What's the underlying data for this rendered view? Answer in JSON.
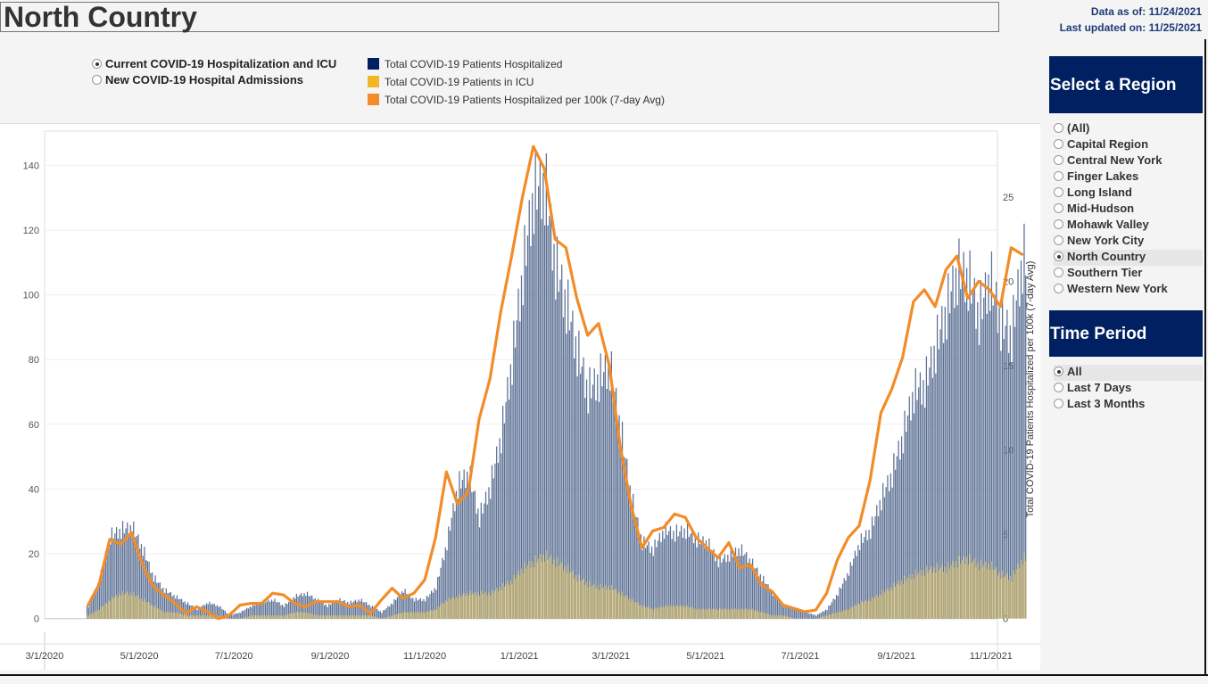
{
  "page": {
    "title": "North Country"
  },
  "asof": {
    "data_as_of": "Data as of: 11/24/2021",
    "last_updated": "Last updated on: 11/25/2021"
  },
  "metric_options": [
    {
      "label": "Current COVID-19 Hospitalization and ICU",
      "selected": true
    },
    {
      "label": "New COVID-19 Hospital Admissions",
      "selected": false
    }
  ],
  "legend": [
    {
      "label": "Total COVID-19 Patients Hospitalized",
      "color": "#002062"
    },
    {
      "label": "Total COVID-19 Patients in ICU",
      "color": "#F2B824"
    },
    {
      "label": "Total COVID-19 Patients Hospitalized per 100k (7-day Avg)",
      "color": "#F28C28"
    }
  ],
  "region": {
    "header": "Select a Region",
    "options": [
      "(All)",
      "Capital Region",
      "Central New York",
      "Finger Lakes",
      "Long Island",
      "Mid-Hudson",
      "Mohawk Valley",
      "New York City",
      "North Country",
      "Southern Tier",
      "Western New York"
    ],
    "selected": "North Country"
  },
  "time_period": {
    "header": "Time Period",
    "options": [
      "All",
      "Last 7 Days",
      "Last 3 Months"
    ],
    "selected": "All"
  },
  "chart_data": {
    "type": "bar",
    "x_tick_labels": [
      "3/1/2020",
      "5/1/2020",
      "7/1/2020",
      "9/1/2020",
      "11/1/2020",
      "1/1/2021",
      "3/1/2021",
      "5/1/2021",
      "7/1/2021",
      "9/1/2021",
      "11/1/2021"
    ],
    "ylim_left": [
      0,
      150
    ],
    "yticks_left": [
      0,
      20,
      40,
      60,
      80,
      100,
      120,
      140
    ],
    "ylim_right": [
      0,
      28.8
    ],
    "yticks_right": [
      0,
      5,
      10,
      15,
      20,
      25
    ],
    "ylabel_right": "Total COVID-19 Patients Hospitalized per 100k (7-day Avg)",
    "grid": true,
    "x_dates": [
      "2020-03-29",
      "2020-04-05",
      "2020-04-12",
      "2020-04-19",
      "2020-04-26",
      "2020-05-03",
      "2020-05-10",
      "2020-05-17",
      "2020-05-24",
      "2020-05-31",
      "2020-06-07",
      "2020-06-14",
      "2020-06-21",
      "2020-06-28",
      "2020-07-05",
      "2020-07-12",
      "2020-07-19",
      "2020-07-26",
      "2020-08-02",
      "2020-08-09",
      "2020-08-16",
      "2020-08-23",
      "2020-08-30",
      "2020-09-06",
      "2020-09-13",
      "2020-09-20",
      "2020-09-27",
      "2020-10-04",
      "2020-10-11",
      "2020-10-18",
      "2020-10-25",
      "2020-11-01",
      "2020-11-08",
      "2020-11-15",
      "2020-11-22",
      "2020-11-29",
      "2020-12-06",
      "2020-12-13",
      "2020-12-20",
      "2020-12-27",
      "2021-01-03",
      "2021-01-10",
      "2021-01-17",
      "2021-01-24",
      "2021-01-31",
      "2021-02-07",
      "2021-02-14",
      "2021-02-21",
      "2021-02-28",
      "2021-03-07",
      "2021-03-14",
      "2021-03-21",
      "2021-03-28",
      "2021-04-04",
      "2021-04-11",
      "2021-04-18",
      "2021-04-25",
      "2021-05-02",
      "2021-05-09",
      "2021-05-16",
      "2021-05-23",
      "2021-05-30",
      "2021-06-06",
      "2021-06-13",
      "2021-06-20",
      "2021-06-27",
      "2021-07-04",
      "2021-07-11",
      "2021-07-18",
      "2021-07-25",
      "2021-08-01",
      "2021-08-08",
      "2021-08-15",
      "2021-08-22",
      "2021-08-29",
      "2021-09-05",
      "2021-09-12",
      "2021-09-19",
      "2021-09-26",
      "2021-10-03",
      "2021-10-10",
      "2021-10-17",
      "2021-10-24",
      "2021-10-31",
      "2021-11-07",
      "2021-11-14",
      "2021-11-21"
    ],
    "series": [
      {
        "name": "Total COVID-19 Patients Hospitalized",
        "values": [
          4,
          12,
          26,
          28,
          29,
          22,
          13,
          9,
          7,
          5,
          3,
          5,
          4,
          1,
          2,
          4,
          5,
          6,
          4,
          7,
          8,
          6,
          4,
          6,
          5,
          6,
          4,
          2,
          5,
          9,
          6,
          6,
          10,
          24,
          42,
          46,
          32,
          42,
          58,
          82,
          110,
          135,
          138,
          112,
          100,
          85,
          72,
          76,
          80,
          60,
          38,
          24,
          22,
          28,
          27,
          28,
          25,
          24,
          18,
          20,
          22,
          18,
          13,
          8,
          4,
          3,
          2,
          1,
          3,
          8,
          15,
          24,
          28,
          38,
          46,
          58,
          72,
          74,
          86,
          98,
          110,
          108,
          96,
          108,
          94,
          90,
          114
        ]
      },
      {
        "name": "Total COVID-19 Patients in ICU",
        "values": [
          1,
          3,
          6,
          8,
          8,
          6,
          4,
          2,
          2,
          1,
          1,
          1,
          1,
          0,
          0,
          1,
          1,
          1,
          1,
          2,
          2,
          1,
          1,
          1,
          1,
          1,
          1,
          0,
          1,
          2,
          2,
          2,
          3,
          6,
          7,
          8,
          8,
          8,
          10,
          12,
          16,
          18,
          20,
          18,
          16,
          13,
          11,
          10,
          10,
          8,
          6,
          4,
          3,
          4,
          4,
          4,
          3,
          3,
          3,
          3,
          3,
          3,
          2,
          1,
          1,
          0,
          0,
          0,
          1,
          2,
          3,
          5,
          6,
          8,
          10,
          12,
          14,
          15,
          16,
          16,
          18,
          19,
          17,
          17,
          14,
          13,
          19
        ]
      },
      {
        "name": "Total COVID-19 Patients Hospitalized per 100k (7-day Avg)",
        "values": [
          0.8,
          2.0,
          4.7,
          4.4,
          5.1,
          3.2,
          1.9,
          1.4,
          0.9,
          0.3,
          0.7,
          0.4,
          0.0,
          0.2,
          0.8,
          0.9,
          0.9,
          1.5,
          1.4,
          0.9,
          0.7,
          1.0,
          1.0,
          1.0,
          0.7,
          0.8,
          0.3,
          1.1,
          1.8,
          1.2,
          1.5,
          2.3,
          4.8,
          8.7,
          6.8,
          7.5,
          11.8,
          14.2,
          18.2,
          21.5,
          25.0,
          28.0,
          26.7,
          22.5,
          22.0,
          19.0,
          16.8,
          17.5,
          15.0,
          10.2,
          6.7,
          4.2,
          5.2,
          5.4,
          6.2,
          6.0,
          4.8,
          4.2,
          3.6,
          4.5,
          3.0,
          3.2,
          2.0,
          1.6,
          0.8,
          0.6,
          0.4,
          0.5,
          1.5,
          3.5,
          4.8,
          5.5,
          8.2,
          12.2,
          13.6,
          15.5,
          18.8,
          19.5,
          18.5,
          20.7,
          21.5,
          19.0,
          20.0,
          19.5,
          18.5,
          22.0,
          21.6
        ]
      }
    ]
  }
}
